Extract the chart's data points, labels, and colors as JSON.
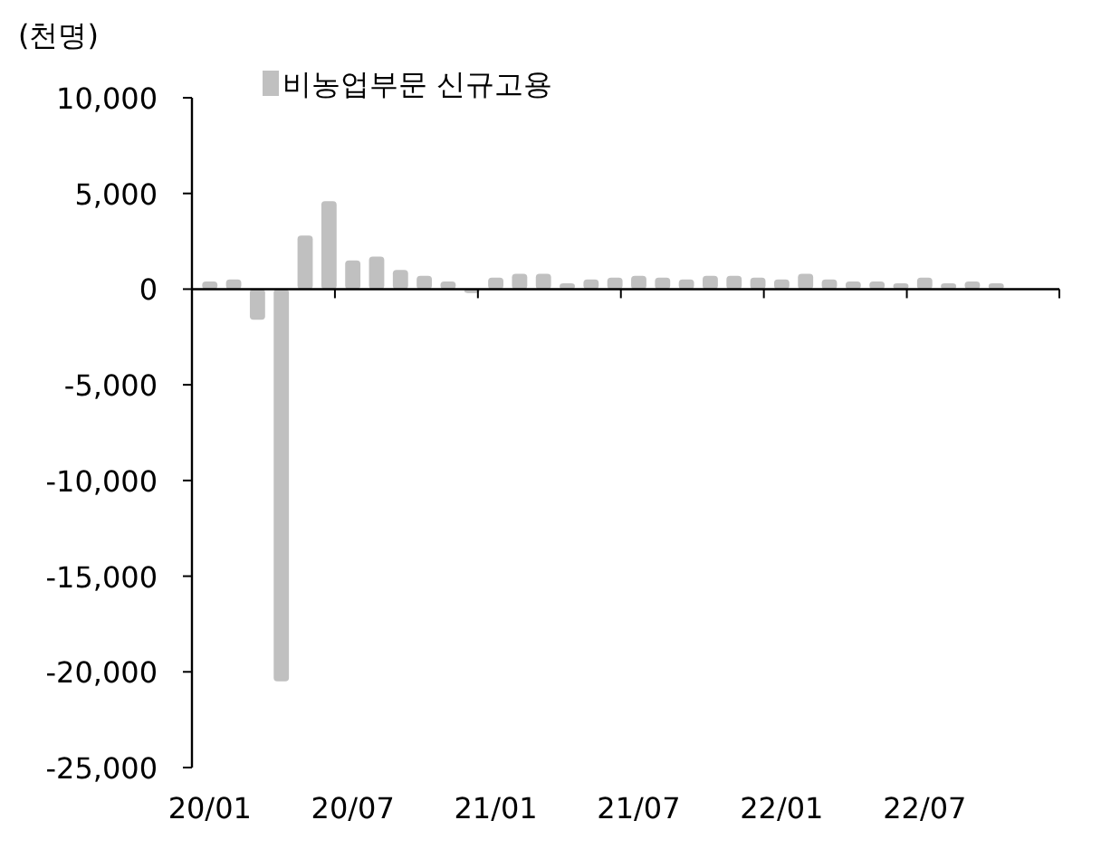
{
  "chart_data": {
    "type": "bar",
    "ylabel": "(천명)",
    "categories": [
      "20/01",
      null,
      null,
      null,
      null,
      null,
      "20/07",
      null,
      null,
      null,
      null,
      null,
      "21/01",
      null,
      null,
      null,
      null,
      null,
      "21/07",
      null,
      null,
      null,
      null,
      null,
      "22/01",
      null,
      null,
      null,
      null,
      null,
      "22/07",
      null,
      null,
      null
    ],
    "series": [
      {
        "name": "비농업부문 신규고용",
        "color": "#c0c0c0",
        "values": [
          400,
          500,
          -1600,
          -20500,
          2800,
          4600,
          1500,
          1700,
          1000,
          700,
          400,
          -200,
          600,
          800,
          800,
          300,
          500,
          600,
          700,
          600,
          500,
          700,
          700,
          600,
          500,
          800,
          500,
          400,
          400,
          300,
          600,
          300,
          400,
          300
        ]
      }
    ],
    "ylim": [
      -25000,
      10000
    ],
    "yticks": [
      {
        "value": -25000,
        "label": "-25,000"
      },
      {
        "value": -20000,
        "label": "-20,000"
      },
      {
        "value": -15000,
        "label": "-15,000"
      },
      {
        "value": -10000,
        "label": "-10,000"
      },
      {
        "value": -5000,
        "label": "-5,000"
      },
      {
        "value": 0,
        "label": "0"
      },
      {
        "value": 5000,
        "label": "5,000"
      },
      {
        "value": 10000,
        "label": "10,000"
      }
    ],
    "legend": "top left"
  }
}
